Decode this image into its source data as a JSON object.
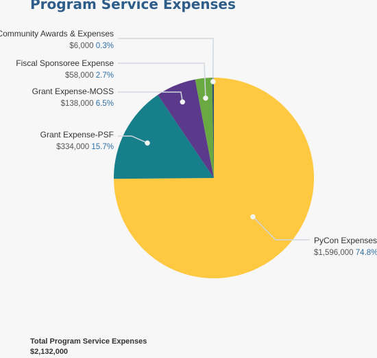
{
  "chart_data": {
    "type": "pie",
    "title": "Program Service Expenses",
    "slices": [
      {
        "label": "PyCon Expenses",
        "value": 1596000,
        "value_label": "$1,596,000",
        "percent_label": "74.8%",
        "color": "#fec841"
      },
      {
        "label": "Grant Expense-PSF",
        "value": 334000,
        "value_label": "$334,000",
        "percent_label": "15.7%",
        "color": "#167f8a"
      },
      {
        "label": "Grant Expense-MOSS",
        "value": 138000,
        "value_label": "$138,000",
        "percent_label": "6.5%",
        "color": "#5b3a8c"
      },
      {
        "label": "Fiscal Sponsoree Expense",
        "value": 58000,
        "value_label": "$58,000",
        "percent_label": "2.7%",
        "color": "#6aa841"
      },
      {
        "label": "Community Awards & Expenses",
        "value": 6000,
        "value_label": "$6,000",
        "percent_label": "0.3%",
        "color": "#2c4e72"
      }
    ],
    "total_label": "Total Program Service Expenses",
    "total_value": "$2,132,000"
  }
}
